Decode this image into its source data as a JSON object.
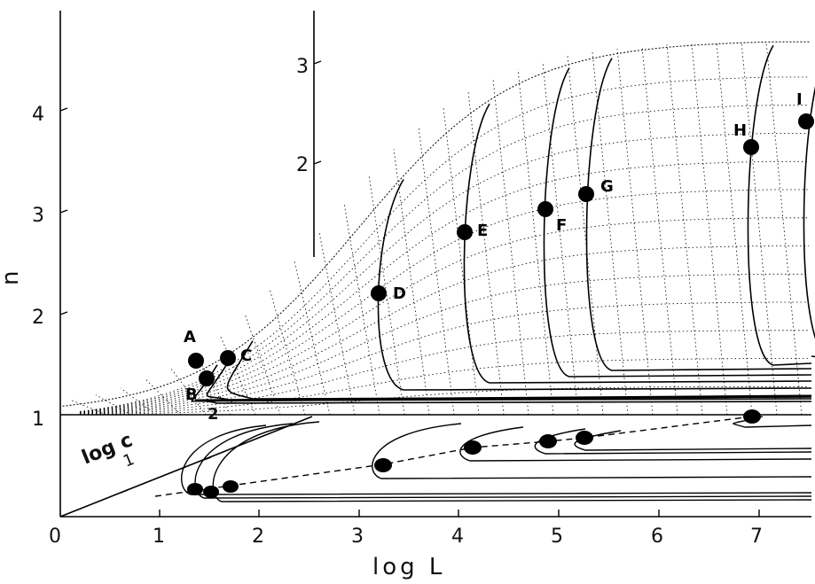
{
  "x_axis": {
    "label": "log L",
    "ticks": [
      "0",
      "1",
      "2",
      "3",
      "4",
      "5",
      "6",
      "7"
    ]
  },
  "n_axis": {
    "label": "n",
    "ticks": [
      "1",
      "2",
      "3",
      "4"
    ]
  },
  "c_axis": {
    "label": "log c",
    "ticks": [
      "1",
      "2"
    ]
  },
  "back_axis": {
    "ticks": [
      "2",
      "3"
    ]
  },
  "points": [
    {
      "label": "A"
    },
    {
      "label": "B"
    },
    {
      "label": "C"
    },
    {
      "label": "D"
    },
    {
      "label": "E"
    },
    {
      "label": "F"
    },
    {
      "label": "G"
    },
    {
      "label": "H"
    },
    {
      "label": "I"
    }
  ]
}
